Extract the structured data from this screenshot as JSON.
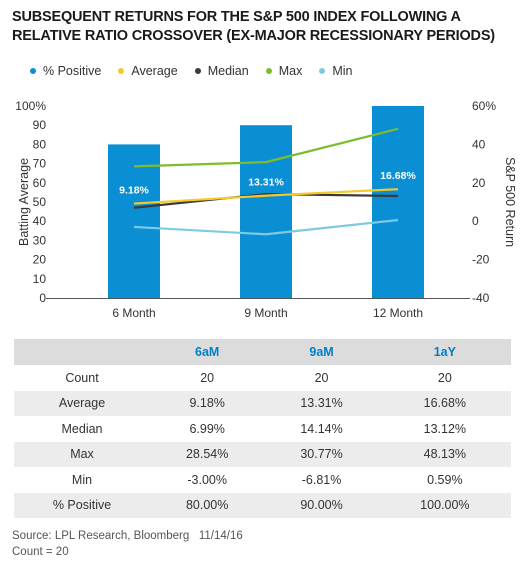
{
  "title": "SUBSEQUENT RETURNS FOR THE S&P 500 INDEX FOLLOWING A RELATIVE RATIO CROSSOVER (EX-MAJOR RECESSIONARY PERIODS)",
  "colors": {
    "positive": "#0b8fd4",
    "average": "#f5c928",
    "median": "#3a3a3a",
    "max": "#7cbd2e",
    "min": "#7ccbe3",
    "header_text": "#0080c7"
  },
  "chart_data": {
    "type": "bar",
    "categories": [
      "6 Month",
      "9 Month",
      "12 Month"
    ],
    "left_axis": {
      "label": "Batting Average",
      "ylim": [
        0,
        100
      ],
      "ticks": [
        "0",
        "10",
        "20",
        "30",
        "40",
        "50",
        "60",
        "70",
        "80",
        "90",
        "100%"
      ]
    },
    "right_axis": {
      "label": "S&P 500 Return",
      "ylim": [
        -40,
        60
      ],
      "ticks": [
        "-40",
        "-20",
        "0",
        "20",
        "40",
        "60%"
      ]
    },
    "series": [
      {
        "name": "% Positive",
        "type": "bar",
        "axis": "left",
        "values": [
          80,
          90,
          100
        ]
      },
      {
        "name": "Average",
        "type": "line",
        "axis": "right",
        "values": [
          9.18,
          13.31,
          16.68
        ]
      },
      {
        "name": "Median",
        "type": "line",
        "axis": "right",
        "values": [
          6.99,
          14.14,
          13.12
        ]
      },
      {
        "name": "Max",
        "type": "line",
        "axis": "right",
        "values": [
          28.54,
          30.77,
          48.13
        ]
      },
      {
        "name": "Min",
        "type": "line",
        "axis": "right",
        "values": [
          -3.0,
          -6.81,
          0.59
        ]
      }
    ],
    "data_labels": [
      "9.18%",
      "13.31%",
      "16.68%"
    ]
  },
  "table": {
    "headers": [
      "",
      "6aM",
      "9aM",
      "1aY"
    ],
    "rows": [
      [
        "Count",
        "20",
        "20",
        "20"
      ],
      [
        "Average",
        "9.18%",
        "13.31%",
        "16.68%"
      ],
      [
        "Median",
        "6.99%",
        "14.14%",
        "13.12%"
      ],
      [
        "Max",
        "28.54%",
        "30.77%",
        "48.13%"
      ],
      [
        "Min",
        "-3.00%",
        "-6.81%",
        "0.59%"
      ],
      [
        "% Positive",
        "80.00%",
        "90.00%",
        "100.00%"
      ]
    ]
  },
  "source_line": "Source: LPL Research, Bloomberg   11/14/16",
  "count_note": "Count = 20"
}
